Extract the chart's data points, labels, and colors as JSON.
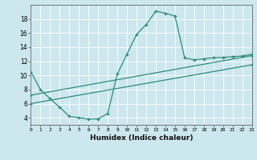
{
  "xlabel": "Humidex (Indice chaleur)",
  "bg_color": "#cce8ee",
  "line_color": "#2e8b7a",
  "xlim": [
    0,
    23
  ],
  "ylim": [
    3.0,
    20.0
  ],
  "yticks": [
    4,
    6,
    8,
    10,
    12,
    14,
    16,
    18
  ],
  "xticks": [
    0,
    1,
    2,
    3,
    4,
    5,
    6,
    7,
    8,
    9,
    10,
    11,
    12,
    13,
    14,
    15,
    16,
    17,
    18,
    19,
    20,
    21,
    22,
    23
  ],
  "curve1_x": [
    0,
    1,
    2,
    3,
    4,
    5,
    6,
    7,
    8,
    9,
    10,
    11,
    12,
    13,
    14,
    15,
    16,
    17,
    18,
    19,
    20,
    21,
    22,
    23
  ],
  "curve1_y": [
    10.5,
    8.0,
    6.7,
    5.5,
    4.2,
    4.0,
    3.8,
    3.85,
    4.6,
    10.2,
    13.0,
    15.8,
    17.2,
    19.1,
    18.8,
    18.4,
    12.5,
    12.2,
    12.35,
    12.5,
    12.55,
    12.65,
    12.75,
    13.0
  ],
  "curve2_x": [
    0,
    23
  ],
  "curve2_y": [
    7.2,
    12.8
  ],
  "curve3_x": [
    0,
    23
  ],
  "curve3_y": [
    6.0,
    11.5
  ]
}
